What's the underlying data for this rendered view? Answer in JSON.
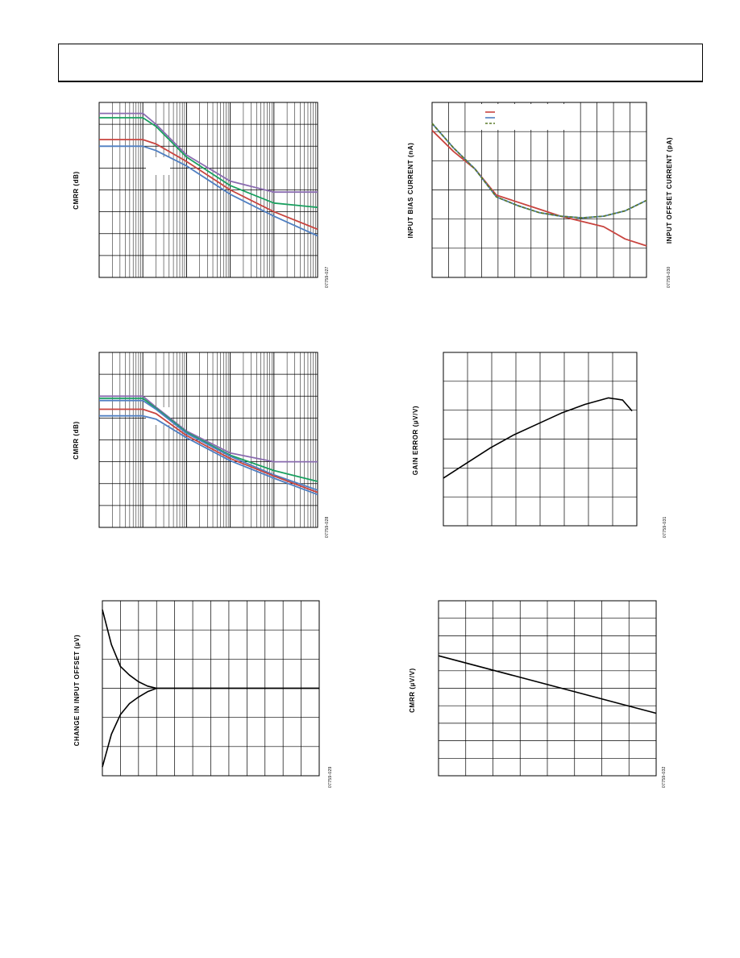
{
  "chart_data": [
    {
      "id": "cmrr-freq-1",
      "type": "line",
      "title": "",
      "xlabel": "",
      "ylabel": "CMRR (dB)",
      "xscale": "log",
      "figure_id": "07759-027",
      "grid": true,
      "series": [
        {
          "color": "#8a6bb0",
          "x": [
            1,
            10,
            20,
            100,
            1000,
            10000,
            100000
          ],
          "y": [
            7.5,
            7.5,
            7.0,
            5.6,
            4.4,
            3.9,
            3.9
          ]
        },
        {
          "color": "#1aa060",
          "x": [
            1,
            10,
            20,
            100,
            1000,
            10000,
            100000
          ],
          "y": [
            7.3,
            7.3,
            6.9,
            5.5,
            4.2,
            3.4,
            3.2
          ]
        },
        {
          "color": "#c8443f",
          "x": [
            1,
            10,
            20,
            100,
            1000,
            10000,
            100000
          ],
          "y": [
            6.3,
            6.3,
            6.1,
            5.3,
            4.0,
            3.0,
            2.2
          ]
        },
        {
          "color": "#4f7fc2",
          "x": [
            1,
            10,
            20,
            100,
            1000,
            10000,
            100000
          ],
          "y": [
            6.0,
            6.0,
            5.8,
            5.1,
            3.8,
            2.8,
            1.9
          ]
        }
      ]
    },
    {
      "id": "bias-current-temp",
      "type": "line",
      "title": "",
      "xlabel": "",
      "ylabel": "INPUT BIAS CURRENT (nA)",
      "ylabel2": "INPUT OFFSET CURRENT (pA)",
      "figure_id": "07759-030",
      "grid": true,
      "legend": "top-center",
      "legend_colors": [
        "#c8443f",
        "#4f7fc2",
        "#5a7a2a"
      ],
      "series": [
        {
          "color": "#c8443f",
          "x": [
            0,
            1,
            2,
            3,
            4,
            5,
            6,
            7,
            8,
            9,
            10
          ],
          "y": [
            5.2,
            4.6,
            4.1,
            3.35,
            3.15,
            2.95,
            2.75,
            2.6,
            2.45,
            2.1,
            1.9
          ]
        },
        {
          "color": "#4f7fc2",
          "x": [
            0,
            1,
            2,
            3,
            4,
            5,
            6,
            7,
            8,
            9,
            10
          ],
          "y": [
            5.4,
            4.7,
            4.1,
            3.3,
            3.05,
            2.85,
            2.75,
            2.7,
            2.75,
            2.9,
            3.2
          ]
        },
        {
          "color": "#5a7a2a",
          "dashed": true,
          "x": [
            0,
            1,
            2,
            3,
            4,
            5,
            6,
            7,
            8,
            9,
            10
          ],
          "y": [
            5.4,
            4.7,
            4.1,
            3.3,
            3.05,
            2.85,
            2.75,
            2.7,
            2.75,
            2.9,
            3.2
          ]
        }
      ]
    },
    {
      "id": "cmrr-freq-2",
      "type": "line",
      "title": "",
      "xlabel": "",
      "ylabel": "CMRR (dB)",
      "xscale": "log",
      "figure_id": "07759-028",
      "grid": true,
      "series": [
        {
          "color": "#8a6bb0",
          "x": [
            1,
            10,
            20,
            100,
            1000,
            10000,
            100000
          ],
          "y": [
            6.0,
            6.0,
            5.5,
            4.4,
            3.4,
            3.0,
            3.0
          ]
        },
        {
          "color": "#1aa060",
          "x": [
            1,
            10,
            20,
            100,
            1000,
            10000,
            100000
          ],
          "y": [
            5.9,
            5.9,
            5.45,
            4.35,
            3.3,
            2.6,
            2.1
          ]
        },
        {
          "color": "#4f7fc2",
          "x": [
            1,
            10,
            20,
            100,
            1000,
            10000,
            100000
          ],
          "y": [
            5.8,
            5.8,
            5.4,
            4.3,
            3.25,
            2.4,
            1.7
          ]
        },
        {
          "color": "#c8443f",
          "x": [
            1,
            10,
            20,
            100,
            1000,
            10000,
            100000
          ],
          "y": [
            5.4,
            5.4,
            5.2,
            4.2,
            3.15,
            2.35,
            1.6
          ]
        },
        {
          "color": "#4f7fc2",
          "x": [
            1,
            10,
            20,
            100,
            1000,
            10000,
            100000
          ],
          "y": [
            5.1,
            5.1,
            4.95,
            4.1,
            3.05,
            2.25,
            1.5
          ]
        }
      ]
    },
    {
      "id": "gain-error",
      "type": "line",
      "title": "",
      "xlabel": "",
      "ylabel": "GAIN ERROR (µV/V)",
      "figure_id": "07759-031",
      "grid": true,
      "series": [
        {
          "color": "#000000",
          "x": [
            0,
            1,
            2,
            3,
            4,
            5,
            6,
            7,
            7.6,
            8.0
          ],
          "y": [
            2.1,
            2.45,
            2.8,
            3.1,
            3.35,
            3.6,
            3.8,
            3.95,
            3.9,
            3.65
          ]
        }
      ]
    },
    {
      "id": "input-offset-change",
      "type": "line",
      "title": "",
      "xlabel": "",
      "ylabel": "CHANGE IN INPUT OFFSET (µV)",
      "figure_id": "07759-029",
      "grid": true,
      "series": [
        {
          "color": "#000000",
          "x": [
            0,
            0.5,
            1,
            1.5,
            2,
            2.5,
            3,
            3.5,
            4,
            12
          ],
          "y": [
            4.8,
            4.0,
            3.5,
            3.3,
            3.15,
            3.05,
            3.0,
            3.0,
            3.0,
            3.0
          ]
        },
        {
          "color": "#000000",
          "x": [
            0,
            0.5,
            1,
            1.5,
            2,
            2.5,
            3,
            3.5,
            4,
            12
          ],
          "y": [
            1.2,
            1.95,
            2.4,
            2.65,
            2.8,
            2.92,
            3.0,
            3.0,
            3.0,
            3.0
          ]
        }
      ]
    },
    {
      "id": "cmrr-uvv",
      "type": "line",
      "title": "",
      "xlabel": "",
      "ylabel": "CMRR (µV/V)",
      "figure_id": "07759-032",
      "grid": true,
      "series": [
        {
          "color": "#000000",
          "x": [
            0,
            10
          ],
          "y": [
            5.8,
            3.5
          ]
        }
      ]
    }
  ]
}
